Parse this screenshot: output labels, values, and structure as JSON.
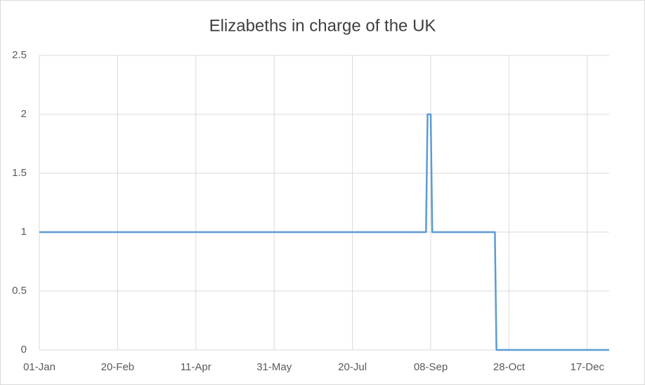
{
  "chart_data": {
    "type": "line",
    "title": "Elizabeths in charge of the UK",
    "x": [
      "01-Jan",
      "05-Sep",
      "06-Sep",
      "08-Sep",
      "09-Sep",
      "19-Oct",
      "20-Oct",
      "31-Dec"
    ],
    "series": [
      {
        "name": "Elizabeths",
        "color": "#5b9bd5",
        "values": [
          1,
          1,
          2,
          2,
          1,
          1,
          0,
          0
        ]
      }
    ],
    "xlim": [
      "01-Jan",
      "31-Dec"
    ],
    "xticks": [
      "01-Jan",
      "20-Feb",
      "11-Apr",
      "31-May",
      "20-Jul",
      "08-Sep",
      "28-Oct",
      "17-Dec"
    ],
    "ylim": [
      0,
      2.5
    ],
    "yticks": [
      0,
      0.5,
      1,
      1.5,
      2,
      2.5
    ],
    "grid": true
  }
}
